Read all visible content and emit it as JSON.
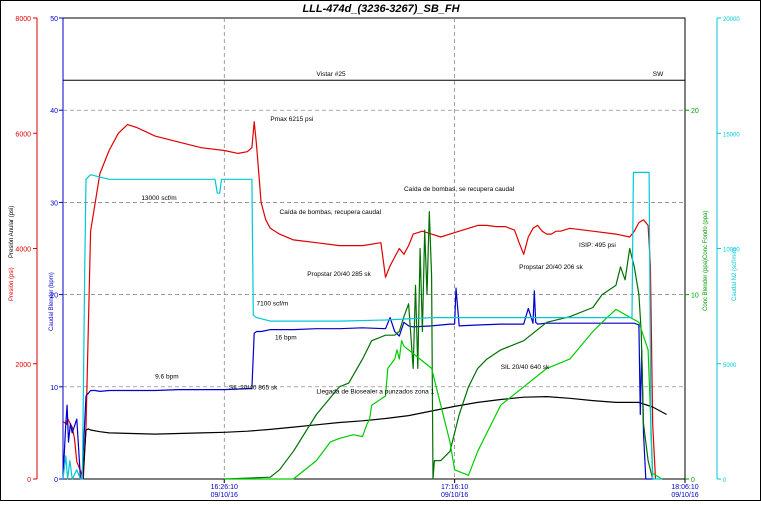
{
  "chart_data": {
    "type": "line",
    "title": "LLL-474d_(3236-3267)_SB_FH",
    "x_ticks": [
      {
        "time": "16:26:10",
        "date": "09/10/16"
      },
      {
        "time": "17:16:10",
        "date": "09/10/16"
      },
      {
        "time": "18:06:10",
        "date": "09/10/16"
      }
    ],
    "x_range_minutes": [
      0,
      135
    ],
    "x_tick_minutes": [
      35,
      85,
      135
    ],
    "axes": {
      "presion": {
        "label": "Presión (psi)",
        "label2": "Presión Anular (psi)",
        "color": "#e00000",
        "range": [
          0,
          8000
        ],
        "ticks": [
          "0",
          "2000",
          "4000",
          "6000",
          "8000"
        ]
      },
      "caudal": {
        "label": "Caudal Blender (bpm)",
        "color": "#0000cc",
        "range": [
          0,
          50
        ],
        "ticks": [
          "0",
          "10",
          "20",
          "30",
          "40",
          "50"
        ]
      },
      "conc": {
        "label": "Conc Blender (ppa)",
        "label2": "Conc Fondo (ppa)",
        "color": "#00a000",
        "range": [
          0,
          25
        ],
        "ticks": [
          "0",
          "10",
          "20"
        ]
      },
      "n2": {
        "label": "Caudal N2 (scf/min)",
        "color": "#00c8d8",
        "range": [
          0,
          20000
        ],
        "ticks": [
          "0",
          "5000",
          "10000",
          "15000",
          "20000"
        ]
      }
    },
    "annotations": [
      {
        "text": "Vistar #25",
        "t": 55,
        "p": 6990
      },
      {
        "text": "SW",
        "t": 128,
        "p": 6990
      },
      {
        "text": "Pmax  6215 psi",
        "t": 45,
        "p": 6210
      },
      {
        "text": "13000 scf/m",
        "t": 17,
        "p": 4840
      },
      {
        "text": "Caída de bombas, se recupera caudal",
        "t": 74,
        "p": 5000
      },
      {
        "text": "Caída de bombas, recupera caudal",
        "t": 47,
        "p": 4600
      },
      {
        "text": "Propstar 20/40  285 sk",
        "t": 53,
        "p": 3520
      },
      {
        "text": "Propstar 20/40  206 sk",
        "t": 99,
        "p": 3640
      },
      {
        "text": "ISIP: 495 psi",
        "t": 112,
        "p": 4030
      },
      {
        "text": "7100 scf/m",
        "t": 42,
        "p": 3010
      },
      {
        "text": "16 bpm",
        "t": 46,
        "p": 2420
      },
      {
        "text": "9.6 bpm",
        "t": 20,
        "p": 1740
      },
      {
        "text": "SIL 20/40  865 sk",
        "t": 36,
        "p": 1550
      },
      {
        "text": "Llegada de Biosealer a punzados zona 1",
        "t": 55,
        "p": 1480
      },
      {
        "text": "SIL 20/40  640 sk",
        "t": 95,
        "p": 1910
      }
    ],
    "series": [
      {
        "key": "pressure",
        "axis": "presion",
        "color": "#e00000",
        "x": [
          0,
          0.8,
          1,
          2,
          2.5,
          3,
          4,
          4.4,
          5,
          5.5,
          6,
          8,
          10,
          12,
          14,
          16,
          20,
          25,
          30,
          35,
          38,
          40,
          41,
          41.5,
          42,
          43,
          44,
          45,
          47,
          50,
          55,
          60,
          65,
          69,
          70,
          71,
          72,
          73,
          74,
          75,
          76,
          78,
          80,
          82,
          84,
          86,
          88,
          90,
          92,
          94,
          96,
          98,
          99,
          100,
          101,
          102,
          103,
          104,
          105,
          106,
          107,
          108,
          110,
          115,
          120,
          123,
          124,
          125,
          126,
          127,
          127.5,
          128,
          128.6
        ],
        "y": [
          1000,
          950,
          1050,
          900,
          700,
          300,
          100,
          0,
          900,
          2600,
          4300,
          5300,
          5700,
          6000,
          6150,
          6100,
          5950,
          5850,
          5750,
          5700,
          5650,
          5680,
          5750,
          6200,
          5800,
          4800,
          4500,
          4350,
          4250,
          4150,
          4100,
          4050,
          4050,
          4100,
          3500,
          3700,
          3850,
          4000,
          3900,
          4050,
          4250,
          4300,
          4250,
          4200,
          4250,
          4300,
          4350,
          4400,
          4400,
          4380,
          4380,
          4320,
          4100,
          3900,
          4200,
          4350,
          4400,
          4300,
          4250,
          4250,
          4300,
          4300,
          4350,
          4300,
          4250,
          4200,
          4300,
          4450,
          4500,
          4400,
          3700,
          950,
          0
        ]
      },
      {
        "key": "annular",
        "axis": "presion",
        "color": "#000000",
        "x": [
          4.3,
          5,
          5.5,
          6,
          8,
          10,
          15,
          20,
          25,
          30,
          35,
          40,
          45,
          50,
          55,
          60,
          65,
          70,
          75,
          80,
          85,
          90,
          95,
          100,
          105,
          110,
          115,
          120,
          125,
          128,
          131
        ],
        "y": [
          0,
          850,
          870,
          850,
          820,
          800,
          790,
          780,
          790,
          800,
          810,
          830,
          860,
          900,
          940,
          980,
          1010,
          1050,
          1100,
          1180,
          1260,
          1330,
          1380,
          1420,
          1430,
          1400,
          1360,
          1330,
          1330,
          1250,
          1120
        ]
      },
      {
        "key": "caudal",
        "axis": "caudal",
        "color": "#0000cc",
        "x": [
          0,
          0.6,
          0.9,
          1.2,
          1.6,
          2,
          3,
          3.8,
          4.1,
          4.4,
          5,
          6,
          7,
          8,
          10,
          15,
          20,
          25,
          30,
          35,
          40,
          41,
          41.5,
          42,
          43,
          44,
          45,
          50,
          55,
          60,
          65,
          70,
          71,
          72,
          73,
          74,
          75,
          76,
          80,
          84,
          85,
          85.3,
          86,
          90,
          95,
          100,
          101,
          102,
          102.3,
          102.6,
          103,
          105,
          110,
          115,
          120,
          124,
          125,
          125.3,
          125.6,
          126,
          126.5,
          127,
          127.8,
          128.3
        ],
        "y": [
          0,
          6,
          8,
          4,
          6,
          5,
          6.5,
          0,
          0,
          3,
          9,
          9.6,
          9.6,
          9.5,
          9.6,
          9.6,
          9.6,
          9.7,
          9.7,
          9.7,
          9.8,
          9.8,
          15.8,
          16,
          16,
          16.1,
          16.2,
          16.2,
          16.3,
          16.3,
          16.4,
          16.3,
          17.5,
          16,
          15.5,
          17,
          16.6,
          16.5,
          16.6,
          16.8,
          16.8,
          20.7,
          16.6,
          16.7,
          16.8,
          16.8,
          18.5,
          16.9,
          20.4,
          17,
          16.8,
          16.9,
          16.9,
          16.9,
          16.9,
          16.9,
          16.7,
          7,
          14,
          5,
          0,
          0,
          0,
          0
        ]
      },
      {
        "key": "conc_blender",
        "axis": "conc",
        "color": "#007000",
        "x": [
          35,
          45,
          47,
          50,
          55,
          60,
          62,
          65,
          67,
          70,
          72,
          73,
          74,
          75,
          76,
          76.5,
          77,
          77.5,
          78,
          78.5,
          79,
          79.5,
          80,
          80.3,
          80.6,
          82,
          84,
          86,
          88,
          90,
          92,
          95,
          100,
          105,
          110,
          115,
          117,
          120,
          121,
          122,
          123,
          124,
          125,
          125.5,
          126,
          127,
          128
        ],
        "y": [
          0,
          0.1,
          0.5,
          1.5,
          3.5,
          5,
          5.2,
          6.5,
          7.5,
          7.8,
          7.8,
          8,
          8.8,
          9.5,
          6,
          10.5,
          6,
          12.5,
          8,
          13.5,
          10,
          14.5,
          11,
          0,
          1,
          1,
          1.5,
          3.5,
          5,
          6,
          6.5,
          7,
          7.5,
          8.5,
          8.8,
          9.3,
          10,
          10.5,
          11.5,
          10.8,
          12.5,
          11.5,
          10,
          8,
          3,
          1,
          0
        ]
      },
      {
        "key": "conc_fondo",
        "axis": "conc",
        "color": "#00cc00",
        "x": [
          35,
          45,
          50,
          55,
          58,
          60,
          63,
          65,
          66,
          66.5,
          67,
          70,
          70.5,
          72,
          72.5,
          73,
          73.5,
          74,
          75,
          80,
          82,
          84,
          85,
          88,
          90,
          92,
          95,
          100,
          105,
          110,
          115,
          117,
          120,
          125,
          127,
          128,
          130
        ],
        "y": [
          0,
          0,
          0,
          1,
          2,
          2.2,
          2.4,
          2.3,
          3,
          3.2,
          4,
          4.5,
          6,
          6.5,
          7,
          6.5,
          7.5,
          7.2,
          7,
          6,
          4,
          2,
          0.5,
          0.2,
          1.5,
          2.5,
          4,
          5,
          6,
          6.5,
          8,
          8.5,
          9.2,
          8.5,
          7,
          0.3,
          0
        ]
      },
      {
        "key": "n2",
        "axis": "n2",
        "color": "#00c8d8",
        "x": [
          0,
          0.6,
          1,
          1.5,
          2,
          3,
          3.8,
          4.2,
          4.7,
          5,
          6,
          10,
          20,
          30,
          33,
          33.5,
          34,
          34.4,
          40,
          41,
          41.3,
          42,
          45,
          60,
          70,
          80,
          90,
          100,
          105,
          110,
          120,
          123.5,
          123.8,
          127.2,
          127.6,
          128,
          130
        ],
        "y": [
          0,
          1000,
          0,
          800,
          0,
          400,
          0,
          0,
          9000,
          13000,
          13200,
          13000,
          13000,
          13000,
          13000,
          12400,
          12400,
          13000,
          13000,
          13000,
          7100,
          7000,
          6850,
          6850,
          6900,
          7000,
          7000,
          7000,
          7000,
          7000,
          7000,
          7000,
          13300,
          13300,
          2000,
          0,
          0
        ]
      }
    ]
  }
}
